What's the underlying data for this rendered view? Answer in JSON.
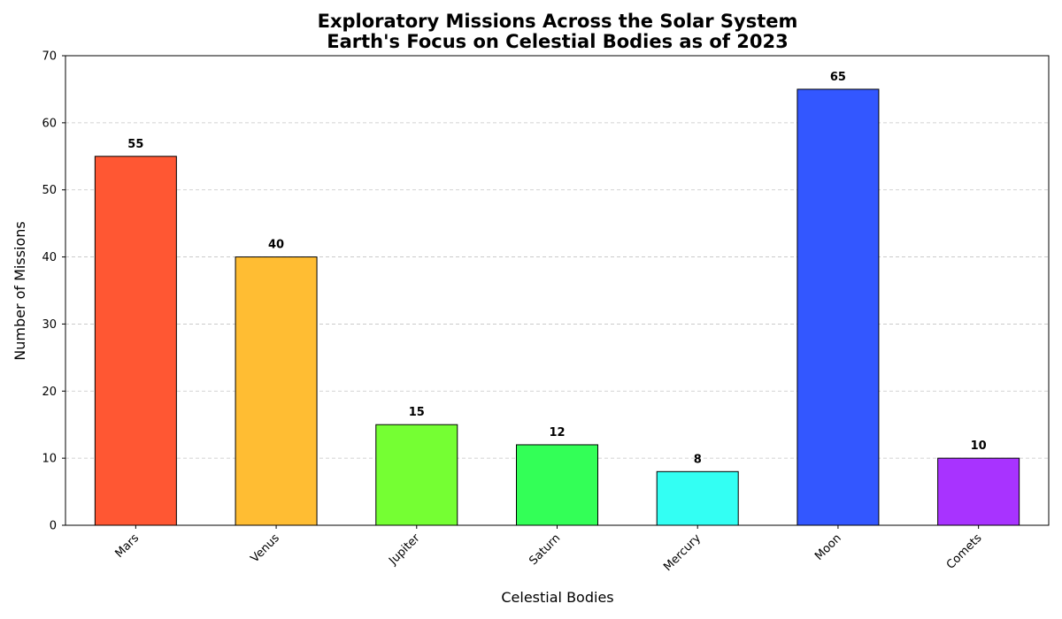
{
  "chart_data": {
    "type": "bar",
    "title": "Exploratory Missions Across the Solar System",
    "subtitle": "Earth's Focus on Celestial Bodies as of 2023",
    "xlabel": "Celestial Bodies",
    "ylabel": "Number of Missions",
    "categories": [
      "Mars",
      "Venus",
      "Jupiter",
      "Saturn",
      "Mercury",
      "Moon",
      "Comets"
    ],
    "values": [
      55,
      40,
      15,
      12,
      8,
      65,
      10
    ],
    "colors": [
      "#ff5733",
      "#ffbd33",
      "#75ff33",
      "#33ff57",
      "#33fff3",
      "#3357ff",
      "#a833ff"
    ],
    "data_labels": [
      "55",
      "40",
      "15",
      "12",
      "8",
      "65",
      "10"
    ],
    "ylim": [
      0,
      70
    ],
    "yticks": [
      0,
      10,
      20,
      30,
      40,
      50,
      60,
      70
    ],
    "grid": "y-dashed",
    "legend": "none"
  }
}
